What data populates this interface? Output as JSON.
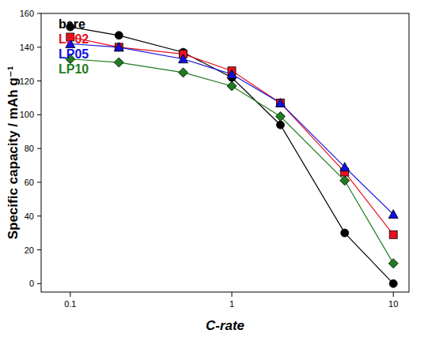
{
  "chart_data": {
    "type": "line",
    "x_label": "C-rate",
    "y_label": "Specific capacity / mAh g⁻¹",
    "x": [
      0.1,
      0.2,
      0.5,
      1,
      2,
      5,
      10
    ],
    "series": [
      {
        "name": "bare",
        "color": "#000000",
        "marker": "circle",
        "values": [
          152,
          147,
          137,
          122,
          94,
          30,
          0
        ]
      },
      {
        "name": "LP02",
        "color": "#e8101e",
        "marker": "square",
        "values": [
          146,
          140,
          136,
          126,
          107,
          66,
          29
        ]
      },
      {
        "name": "LP05",
        "color": "#1010e0",
        "marker": "triangle",
        "values": [
          142,
          140,
          133,
          124,
          107,
          69,
          41
        ]
      },
      {
        "name": "LP10",
        "color": "#1e7d1e",
        "marker": "diamond",
        "values": [
          133,
          131,
          125,
          117,
          99,
          61,
          12
        ]
      }
    ],
    "xlim": [
      0.066,
      12.5
    ],
    "xticks": [
      0.1,
      1,
      10
    ],
    "ylim": [
      -5,
      160
    ],
    "yticks": [
      0,
      20,
      40,
      60,
      80,
      100,
      120,
      140,
      160
    ],
    "log": "x",
    "grid": false,
    "legend": "upper left"
  }
}
